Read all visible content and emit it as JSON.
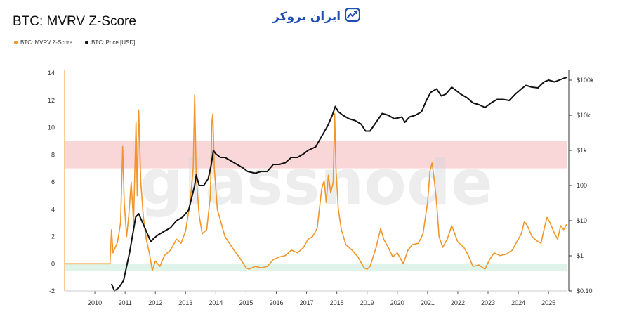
{
  "header": {
    "title": "BTC: MVRV Z-Score"
  },
  "brand": {
    "text": "ایران بروکر",
    "icon": "chart-trend-icon",
    "color": "#1f4fb3"
  },
  "watermark": "glassnode",
  "legend": [
    {
      "label": "BTC: MVRV Z-Score",
      "color": "#f0962a"
    },
    {
      "label": "BTC: Price [USD]",
      "color": "#111111"
    }
  ],
  "chart_data": {
    "type": "line",
    "xlabel": "",
    "ylabel": "",
    "y_left_ticks": [
      "14",
      "12",
      "10",
      "8",
      "6",
      "4",
      "2",
      "0",
      "-2"
    ],
    "y_right_ticks": [
      "$100k",
      "$10k",
      "$1k",
      "100",
      "$10",
      "$1",
      "$0.10"
    ],
    "x_ticks": [
      "2010",
      "2011",
      "2012",
      "2013",
      "2014",
      "2015",
      "2016",
      "2017",
      "2018",
      "2019",
      "2020",
      "2021",
      "2022",
      "2023",
      "2024",
      "2025"
    ],
    "ylim_left": [
      -2,
      14
    ],
    "ylim_right_log10": [
      -1,
      5.2
    ],
    "xlim": [
      2009.0,
      2025.6
    ],
    "zones": [
      {
        "name": "overvalued",
        "from": 7,
        "to": 9,
        "color": "#f9d6d8"
      },
      {
        "name": "undervalued",
        "from": -0.5,
        "to": 0,
        "color": "#dff3e8"
      }
    ],
    "series": [
      {
        "name": "BTC: MVRV Z-Score",
        "color": "#f0962a",
        "points": [
          [
            2009.0,
            0
          ],
          [
            2010.5,
            0
          ],
          [
            2010.55,
            2.5
          ],
          [
            2010.6,
            0.8
          ],
          [
            2010.75,
            1.6
          ],
          [
            2010.85,
            3.0
          ],
          [
            2010.92,
            8.6
          ],
          [
            2010.97,
            4.5
          ],
          [
            2011.05,
            2.0
          ],
          [
            2011.12,
            3.5
          ],
          [
            2011.2,
            6.0
          ],
          [
            2011.28,
            3.0
          ],
          [
            2011.36,
            10.4
          ],
          [
            2011.4,
            5.0
          ],
          [
            2011.45,
            11.3
          ],
          [
            2011.52,
            6.0
          ],
          [
            2011.6,
            3.5
          ],
          [
            2011.7,
            1.8
          ],
          [
            2011.8,
            0.8
          ],
          [
            2011.9,
            -0.5
          ],
          [
            2012.0,
            0.2
          ],
          [
            2012.15,
            -0.2
          ],
          [
            2012.3,
            0.6
          ],
          [
            2012.5,
            1.0
          ],
          [
            2012.7,
            1.8
          ],
          [
            2012.85,
            1.5
          ],
          [
            2013.0,
            2.4
          ],
          [
            2013.15,
            4.5
          ],
          [
            2013.25,
            7.0
          ],
          [
            2013.3,
            12.4
          ],
          [
            2013.35,
            6.5
          ],
          [
            2013.45,
            3.5
          ],
          [
            2013.55,
            2.2
          ],
          [
            2013.7,
            2.5
          ],
          [
            2013.82,
            5.0
          ],
          [
            2013.87,
            10.4
          ],
          [
            2013.9,
            11.0
          ],
          [
            2013.95,
            7.0
          ],
          [
            2014.05,
            4.0
          ],
          [
            2014.15,
            3.2
          ],
          [
            2014.3,
            2.0
          ],
          [
            2014.45,
            1.5
          ],
          [
            2014.6,
            1.0
          ],
          [
            2014.8,
            0.4
          ],
          [
            2015.0,
            -0.3
          ],
          [
            2015.1,
            -0.4
          ],
          [
            2015.3,
            -0.2
          ],
          [
            2015.5,
            -0.3
          ],
          [
            2015.7,
            -0.2
          ],
          [
            2015.9,
            0.3
          ],
          [
            2016.1,
            0.5
          ],
          [
            2016.3,
            0.6
          ],
          [
            2016.5,
            1.0
          ],
          [
            2016.7,
            0.8
          ],
          [
            2016.9,
            1.2
          ],
          [
            2017.05,
            1.8
          ],
          [
            2017.2,
            2.0
          ],
          [
            2017.35,
            2.6
          ],
          [
            2017.5,
            5.5
          ],
          [
            2017.58,
            6.1
          ],
          [
            2017.65,
            4.5
          ],
          [
            2017.72,
            6.5
          ],
          [
            2017.8,
            5.2
          ],
          [
            2017.88,
            6.0
          ],
          [
            2017.93,
            11.0
          ],
          [
            2017.97,
            7.0
          ],
          [
            2018.05,
            4.0
          ],
          [
            2018.15,
            2.5
          ],
          [
            2018.3,
            1.4
          ],
          [
            2018.5,
            1.0
          ],
          [
            2018.7,
            0.5
          ],
          [
            2018.9,
            -0.3
          ],
          [
            2019.0,
            -0.4
          ],
          [
            2019.1,
            -0.2
          ],
          [
            2019.3,
            1.2
          ],
          [
            2019.45,
            2.6
          ],
          [
            2019.55,
            1.8
          ],
          [
            2019.7,
            1.2
          ],
          [
            2019.85,
            0.5
          ],
          [
            2020.0,
            0.8
          ],
          [
            2020.2,
            0.0
          ],
          [
            2020.35,
            1.0
          ],
          [
            2020.5,
            1.4
          ],
          [
            2020.7,
            1.5
          ],
          [
            2020.85,
            2.2
          ],
          [
            2021.0,
            4.5
          ],
          [
            2021.08,
            6.8
          ],
          [
            2021.15,
            7.4
          ],
          [
            2021.22,
            6.2
          ],
          [
            2021.3,
            4.5
          ],
          [
            2021.38,
            2.0
          ],
          [
            2021.5,
            1.2
          ],
          [
            2021.65,
            1.8
          ],
          [
            2021.8,
            2.8
          ],
          [
            2021.9,
            2.2
          ],
          [
            2022.0,
            1.6
          ],
          [
            2022.2,
            1.2
          ],
          [
            2022.35,
            0.6
          ],
          [
            2022.5,
            -0.2
          ],
          [
            2022.7,
            -0.1
          ],
          [
            2022.9,
            -0.4
          ],
          [
            2023.05,
            0.3
          ],
          [
            2023.2,
            0.8
          ],
          [
            2023.4,
            0.6
          ],
          [
            2023.6,
            0.7
          ],
          [
            2023.8,
            1.0
          ],
          [
            2023.95,
            1.6
          ],
          [
            2024.1,
            2.2
          ],
          [
            2024.2,
            3.1
          ],
          [
            2024.3,
            2.8
          ],
          [
            2024.45,
            2.0
          ],
          [
            2024.6,
            1.7
          ],
          [
            2024.75,
            1.5
          ],
          [
            2024.88,
            2.8
          ],
          [
            2024.95,
            3.4
          ],
          [
            2025.05,
            3.0
          ],
          [
            2025.2,
            2.2
          ],
          [
            2025.3,
            1.8
          ],
          [
            2025.4,
            2.8
          ],
          [
            2025.5,
            2.5
          ],
          [
            2025.6,
            2.9
          ]
        ]
      },
      {
        "name": "BTC: Price [USD]",
        "color": "#111111",
        "points": [
          [
            2010.55,
            -0.8
          ],
          [
            2010.65,
            -1.0
          ],
          [
            2010.8,
            -0.9
          ],
          [
            2010.95,
            -0.7
          ],
          [
            2011.05,
            -0.3
          ],
          [
            2011.15,
            0.1
          ],
          [
            2011.25,
            0.6
          ],
          [
            2011.35,
            1.1
          ],
          [
            2011.45,
            1.2
          ],
          [
            2011.55,
            1.0
          ],
          [
            2011.7,
            0.7
          ],
          [
            2011.85,
            0.4
          ],
          [
            2011.95,
            0.5
          ],
          [
            2012.1,
            0.6
          ],
          [
            2012.3,
            0.7
          ],
          [
            2012.5,
            0.8
          ],
          [
            2012.7,
            1.0
          ],
          [
            2012.9,
            1.1
          ],
          [
            2013.1,
            1.3
          ],
          [
            2013.3,
            2.0
          ],
          [
            2013.35,
            2.3
          ],
          [
            2013.45,
            2.0
          ],
          [
            2013.6,
            2.0
          ],
          [
            2013.75,
            2.2
          ],
          [
            2013.85,
            2.6
          ],
          [
            2013.92,
            3.0
          ],
          [
            2014.0,
            2.9
          ],
          [
            2014.15,
            2.8
          ],
          [
            2014.3,
            2.8
          ],
          [
            2014.5,
            2.7
          ],
          [
            2014.7,
            2.6
          ],
          [
            2014.9,
            2.5
          ],
          [
            2015.05,
            2.4
          ],
          [
            2015.3,
            2.35
          ],
          [
            2015.5,
            2.4
          ],
          [
            2015.7,
            2.4
          ],
          [
            2015.9,
            2.6
          ],
          [
            2016.1,
            2.6
          ],
          [
            2016.3,
            2.65
          ],
          [
            2016.5,
            2.8
          ],
          [
            2016.7,
            2.8
          ],
          [
            2016.9,
            2.9
          ],
          [
            2017.05,
            3.0
          ],
          [
            2017.3,
            3.1
          ],
          [
            2017.5,
            3.4
          ],
          [
            2017.7,
            3.7
          ],
          [
            2017.85,
            4.0
          ],
          [
            2017.95,
            4.25
          ],
          [
            2018.05,
            4.1
          ],
          [
            2018.2,
            4.0
          ],
          [
            2018.4,
            3.9
          ],
          [
            2018.6,
            3.85
          ],
          [
            2018.8,
            3.75
          ],
          [
            2018.95,
            3.55
          ],
          [
            2019.1,
            3.55
          ],
          [
            2019.3,
            3.8
          ],
          [
            2019.5,
            4.05
          ],
          [
            2019.7,
            4.0
          ],
          [
            2019.9,
            3.9
          ],
          [
            2020.15,
            3.95
          ],
          [
            2020.25,
            3.8
          ],
          [
            2020.4,
            3.95
          ],
          [
            2020.6,
            4.0
          ],
          [
            2020.8,
            4.1
          ],
          [
            2020.95,
            4.4
          ],
          [
            2021.1,
            4.65
          ],
          [
            2021.3,
            4.75
          ],
          [
            2021.45,
            4.55
          ],
          [
            2021.6,
            4.6
          ],
          [
            2021.8,
            4.8
          ],
          [
            2021.95,
            4.7
          ],
          [
            2022.1,
            4.6
          ],
          [
            2022.3,
            4.5
          ],
          [
            2022.5,
            4.35
          ],
          [
            2022.7,
            4.3
          ],
          [
            2022.9,
            4.22
          ],
          [
            2023.1,
            4.35
          ],
          [
            2023.3,
            4.45
          ],
          [
            2023.5,
            4.45
          ],
          [
            2023.7,
            4.42
          ],
          [
            2023.9,
            4.6
          ],
          [
            2024.1,
            4.75
          ],
          [
            2024.25,
            4.85
          ],
          [
            2024.45,
            4.8
          ],
          [
            2024.65,
            4.78
          ],
          [
            2024.85,
            4.95
          ],
          [
            2025.0,
            5.0
          ],
          [
            2025.2,
            4.95
          ],
          [
            2025.35,
            5.0
          ],
          [
            2025.5,
            5.05
          ],
          [
            2025.6,
            5.08
          ]
        ]
      }
    ]
  }
}
